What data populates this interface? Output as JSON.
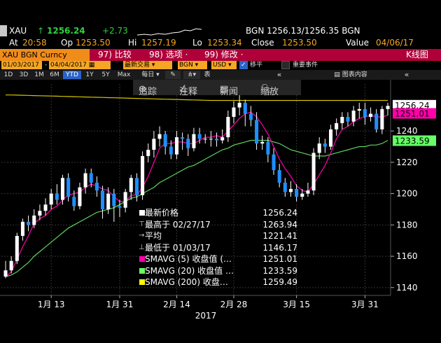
{
  "quote": {
    "ticker": "XAU",
    "arrow": "↑",
    "last": "1256.24",
    "change": "+2.73",
    "bid_ask": "BGN 1256.13/1256.35 BGN",
    "at_label": "At",
    "time": "20:58",
    "op_label": "Op",
    "open": "1253.50",
    "hi_label": "Hi",
    "high": "1257.19",
    "lo_label": "Lo",
    "low": "1253.34",
    "close_label": "Close",
    "close": "1253.50",
    "value_label": "Value",
    "value_date": "04/06/17"
  },
  "menu": {
    "title": "XAU BGN Curncy",
    "compare": "97) 比较",
    "options": "98) 选项 ·",
    "edit": "99) 修改 ·",
    "chart_type": "K线图"
  },
  "settings": {
    "start_date": "01/03/2017",
    "end_date": "04/04/2017",
    "trade_type": "最新交易",
    "source": "BGN",
    "currency": "USD",
    "shift_label": "移平",
    "events_label": "重要事件",
    "chart_content": "图表内容"
  },
  "periods": [
    "1D",
    "3D",
    "1M",
    "6M",
    "YTD",
    "1Y",
    "5Y",
    "Max"
  ],
  "period_selected": "YTD",
  "freq": "每日",
  "toolbar": {
    "track": "追踪",
    "annotate": "注释",
    "news": "新闻",
    "zoom": "缩放"
  },
  "legend": [
    {
      "label": "最新价格",
      "value": "1256.24",
      "color": "#ffffff",
      "icon": ""
    },
    {
      "label": "最高于 02/27/17",
      "value": "1263.94",
      "color": "",
      "icon": "⊤"
    },
    {
      "label": "平均",
      "value": "1221.41",
      "color": "",
      "icon": "→"
    },
    {
      "label": "最低于 01/03/17",
      "value": "1146.17",
      "color": "",
      "icon": "⊥"
    },
    {
      "label": "SMAVG (5) 收盘值 (…",
      "value": "1251.01",
      "color": "#ff00aa",
      "icon": ""
    },
    {
      "label": "SMAVG (20) 收盘值 …",
      "value": "1233.59",
      "color": "#66ff66",
      "icon": ""
    },
    {
      "label": "SMAVG (200) 收盘…",
      "value": "1259.49",
      "color": "#ffff00",
      "icon": ""
    }
  ],
  "chart_data": {
    "type": "candlestick",
    "ylim": [
      1135,
      1270
    ],
    "yticks": [
      1140,
      1160,
      1180,
      1200,
      1220,
      1240
    ],
    "xtick_labels": [
      "1月 13",
      "1月 31",
      "2月 14",
      "2月 28",
      "3月 15",
      "3月 31"
    ],
    "xtick_index": [
      8,
      20,
      30,
      40,
      51,
      63
    ],
    "year_label": "2017",
    "up_color": "#ffffff",
    "down_color": "#1f8fff",
    "candles": [
      [
        1147,
        1151,
        1146,
        1157
      ],
      [
        1151,
        1157,
        1149,
        1160
      ],
      [
        1157,
        1173,
        1155,
        1175
      ],
      [
        1173,
        1182,
        1170,
        1184
      ],
      [
        1182,
        1180,
        1176,
        1186
      ],
      [
        1180,
        1186,
        1178,
        1190
      ],
      [
        1186,
        1189,
        1183,
        1193
      ],
      [
        1189,
        1193,
        1186,
        1197
      ],
      [
        1193,
        1200,
        1190,
        1203
      ],
      [
        1200,
        1196,
        1193,
        1206
      ],
      [
        1196,
        1210,
        1193,
        1212
      ],
      [
        1210,
        1198,
        1195,
        1213
      ],
      [
        1198,
        1192,
        1189,
        1202
      ],
      [
        1192,
        1204,
        1190,
        1207
      ],
      [
        1204,
        1213,
        1200,
        1216
      ],
      [
        1213,
        1207,
        1204,
        1216
      ],
      [
        1207,
        1202,
        1198,
        1211
      ],
      [
        1202,
        1190,
        1184,
        1205
      ],
      [
        1190,
        1200,
        1187,
        1204
      ],
      [
        1200,
        1192,
        1182,
        1203
      ],
      [
        1192,
        1191,
        1185,
        1196
      ],
      [
        1191,
        1201,
        1188,
        1203
      ],
      [
        1201,
        1210,
        1196,
        1212
      ],
      [
        1210,
        1199,
        1195,
        1213
      ],
      [
        1199,
        1224,
        1196,
        1227
      ],
      [
        1224,
        1228,
        1220,
        1232
      ],
      [
        1228,
        1235,
        1223,
        1240
      ],
      [
        1235,
        1238,
        1230,
        1243
      ],
      [
        1238,
        1230,
        1225,
        1240
      ],
      [
        1230,
        1225,
        1222,
        1234
      ],
      [
        1225,
        1236,
        1222,
        1240
      ],
      [
        1236,
        1235,
        1228,
        1239
      ],
      [
        1235,
        1229,
        1224,
        1238
      ],
      [
        1229,
        1238,
        1227,
        1242
      ],
      [
        1238,
        1235,
        1232,
        1242
      ],
      [
        1235,
        1235,
        1232,
        1238
      ],
      [
        1235,
        1235,
        1230,
        1240
      ],
      [
        1235,
        1234,
        1230,
        1239
      ],
      [
        1234,
        1236,
        1232,
        1241
      ],
      [
        1236,
        1249,
        1233,
        1253
      ],
      [
        1249,
        1255,
        1245,
        1259
      ],
      [
        1255,
        1258,
        1250,
        1263
      ],
      [
        1258,
        1251,
        1243,
        1260
      ],
      [
        1251,
        1247,
        1243,
        1256
      ],
      [
        1247,
        1232,
        1228,
        1252
      ],
      [
        1232,
        1233,
        1228,
        1237
      ],
      [
        1233,
        1225,
        1220,
        1236
      ],
      [
        1225,
        1215,
        1212,
        1229
      ],
      [
        1215,
        1207,
        1204,
        1219
      ],
      [
        1207,
        1201,
        1198,
        1210
      ],
      [
        1201,
        1203,
        1198,
        1208
      ],
      [
        1203,
        1198,
        1195,
        1206
      ],
      [
        1198,
        1200,
        1196,
        1203
      ],
      [
        1200,
        1202,
        1198,
        1207
      ],
      [
        1202,
        1226,
        1199,
        1229
      ],
      [
        1226,
        1232,
        1222,
        1236
      ],
      [
        1232,
        1230,
        1226,
        1235
      ],
      [
        1230,
        1241,
        1228,
        1244
      ],
      [
        1241,
        1245,
        1237,
        1248
      ],
      [
        1245,
        1249,
        1241,
        1252
      ],
      [
        1249,
        1246,
        1243,
        1252
      ],
      [
        1246,
        1253,
        1243,
        1256
      ],
      [
        1253,
        1254,
        1248,
        1258
      ],
      [
        1254,
        1249,
        1244,
        1258
      ],
      [
        1249,
        1251,
        1246,
        1255
      ],
      [
        1251,
        1241,
        1239,
        1254
      ],
      [
        1241,
        1254,
        1238,
        1256
      ],
      [
        1254,
        1256,
        1250,
        1258
      ]
    ],
    "sma5": [
      1147,
      1150,
      1158,
      1166,
      1173,
      1181,
      1184,
      1186,
      1190,
      1192,
      1196,
      1199,
      1200,
      1201,
      1204,
      1206,
      1205,
      1203,
      1202,
      1198,
      1195,
      1195,
      1199,
      1199,
      1204,
      1211,
      1220,
      1229,
      1232,
      1232,
      1233,
      1233,
      1232,
      1232,
      1234,
      1236,
      1236,
      1237,
      1236,
      1240,
      1244,
      1248,
      1251,
      1252,
      1249,
      1244,
      1238,
      1230,
      1222,
      1216,
      1211,
      1205,
      1202,
      1201,
      1206,
      1212,
      1218,
      1226,
      1235,
      1241,
      1243,
      1246,
      1248,
      1249,
      1250,
      1249,
      1249,
      1250
    ],
    "sma20": [
      1147,
      1148,
      1150,
      1153,
      1156,
      1160,
      1163,
      1166,
      1169,
      1172,
      1175,
      1178,
      1180,
      1182,
      1184,
      1186,
      1188,
      1189,
      1190,
      1191,
      1193,
      1195,
      1197,
      1198,
      1200,
      1202,
      1204,
      1207,
      1209,
      1211,
      1213,
      1215,
      1217,
      1218,
      1220,
      1222,
      1224,
      1226,
      1228,
      1229,
      1231,
      1232,
      1233,
      1234,
      1234,
      1234,
      1234,
      1233,
      1232,
      1230,
      1228,
      1227,
      1226,
      1225,
      1224,
      1224,
      1224,
      1225,
      1226,
      1227,
      1228,
      1229,
      1230,
      1230,
      1231,
      1231,
      1232,
      1234
    ],
    "sma200": [
      1263,
      1263,
      1262.9,
      1262.8,
      1262.7,
      1262.6,
      1262.5,
      1262.4,
      1262.3,
      1262.2,
      1262.1,
      1262,
      1261.9,
      1261.8,
      1261.7,
      1261.6,
      1261.5,
      1261.4,
      1261.3,
      1261.2,
      1261.1,
      1261,
      1260.9,
      1260.8,
      1260.7,
      1260.6,
      1260.5,
      1260.4,
      1260.3,
      1260.2,
      1260.1,
      1260,
      1259.9,
      1259.8,
      1259.7,
      1259.6,
      1259.5,
      1259.5,
      1259.5,
      1259.5,
      1259.5,
      1259.5,
      1259.5,
      1259.5,
      1259.5,
      1259.5,
      1259.5,
      1259.5,
      1259.5,
      1259.5,
      1259.5,
      1259.5,
      1259.5,
      1259.5,
      1259.5,
      1259.5,
      1259.5,
      1259.5,
      1259.5,
      1259.5,
      1259.5,
      1259.5,
      1259.5,
      1259.5,
      1259.5,
      1259.5,
      1259.5,
      1259.5
    ],
    "price_labels": [
      {
        "value": 1256.24,
        "text": "1256.24",
        "bg": "#ffffff",
        "fg": "#000000"
      },
      {
        "value": 1251.01,
        "text": "1251.01",
        "bg": "#ff00aa",
        "fg": "#000000"
      },
      {
        "value": 1233.59,
        "text": "1233.59",
        "bg": "#66ff66",
        "fg": "#000000"
      }
    ]
  }
}
